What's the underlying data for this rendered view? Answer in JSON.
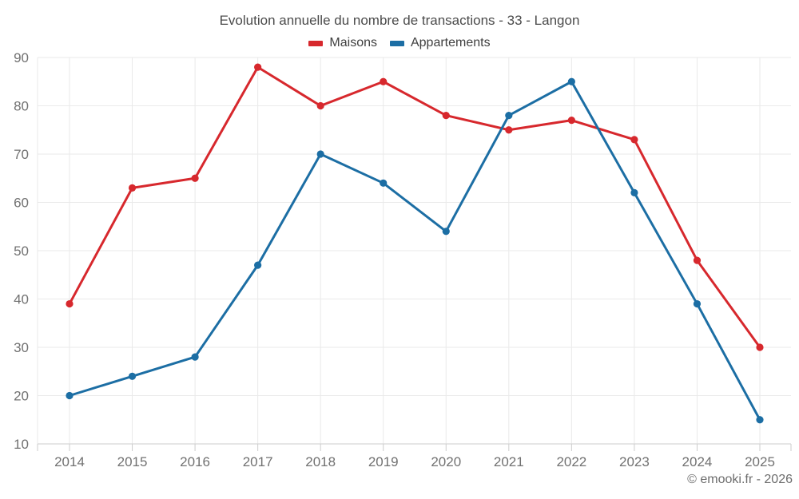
{
  "title": "Evolution annuelle du nombre de transactions - 33 - Langon",
  "footer": "© emooki.fr - 2026",
  "legend": [
    {
      "label": "Maisons",
      "color": "#d7282d"
    },
    {
      "label": "Appartements",
      "color": "#1c6ea4"
    }
  ],
  "chart_data": {
    "type": "line",
    "title": "Evolution annuelle du nombre de transactions - 33 - Langon",
    "x": [
      2014,
      2015,
      2016,
      2017,
      2018,
      2019,
      2020,
      2021,
      2022,
      2023,
      2024,
      2025
    ],
    "series": [
      {
        "name": "Maisons",
        "color": "#d7282d",
        "values": [
          39,
          63,
          65,
          88,
          80,
          85,
          78,
          75,
          77,
          73,
          48,
          30
        ]
      },
      {
        "name": "Appartements",
        "color": "#1c6ea4",
        "values": [
          20,
          24,
          28,
          47,
          70,
          64,
          54,
          78,
          85,
          62,
          39,
          15
        ]
      }
    ],
    "xlabel": "",
    "ylabel": "",
    "ylim": [
      10,
      90
    ],
    "yticks": [
      10,
      20,
      30,
      40,
      50,
      60,
      70,
      80,
      90
    ],
    "grid": true,
    "legend_position": "top",
    "colors": {
      "grid": "#eaeaea",
      "axis": "#cdcdcd",
      "tick_label": "#717171",
      "background": "#ffffff"
    }
  }
}
